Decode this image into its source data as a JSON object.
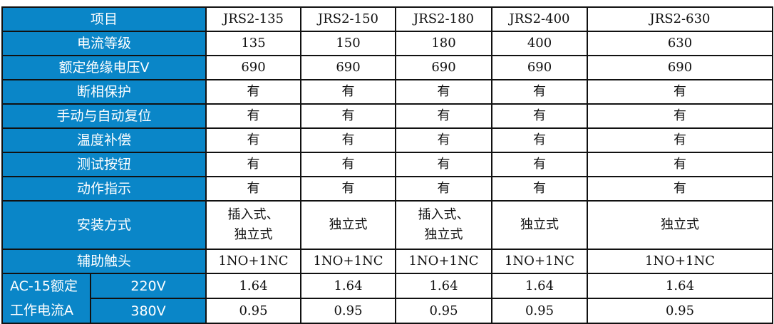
{
  "header": {
    "label": "项目",
    "models": [
      "JRS2-135",
      "JRS2-150",
      "JRS2-180",
      "JRS2-400",
      "JRS2-630"
    ]
  },
  "rows": [
    {
      "label": "电流等级",
      "values": [
        "135",
        "150",
        "180",
        "400",
        "630"
      ]
    },
    {
      "label": "额定绝缘电压V",
      "values": [
        "690",
        "690",
        "690",
        "690",
        "690"
      ]
    },
    {
      "label": "断相保护",
      "values": [
        "有",
        "有",
        "有",
        "有",
        "有"
      ]
    },
    {
      "label": "手动与自动复位",
      "values": [
        "有",
        "有",
        "有",
        "有",
        "有"
      ]
    },
    {
      "label": "温度补偿",
      "values": [
        "有",
        "有",
        "有",
        "有",
        "有"
      ]
    },
    {
      "label": "测试按钮",
      "values": [
        "有",
        "有",
        "有",
        "有",
        "有"
      ]
    },
    {
      "label": "动作指示",
      "values": [
        "有",
        "有",
        "有",
        "有",
        "有"
      ]
    },
    {
      "label": "安装方式",
      "values": [
        "插入式、独立式",
        "独立式",
        "插入式、独立式",
        "独立式",
        "独立式"
      ]
    },
    {
      "label": "辅助触头",
      "values": [
        "1NO+1NC",
        "1NO+1NC",
        "1NO+1NC",
        "1NO+1NC",
        "1NO+1NC"
      ]
    }
  ],
  "ac15": {
    "label": "AC-15额定工作电流A",
    "sub": [
      {
        "label": "220V",
        "values": [
          "1.64",
          "1.64",
          "1.64",
          "1.64",
          "1.64"
        ]
      },
      {
        "label": "380V",
        "values": [
          "0.95",
          "0.95",
          "0.95",
          "0.95",
          "0.95"
        ]
      }
    ]
  },
  "colors": {
    "header_bg": "#0A86C8"
  }
}
